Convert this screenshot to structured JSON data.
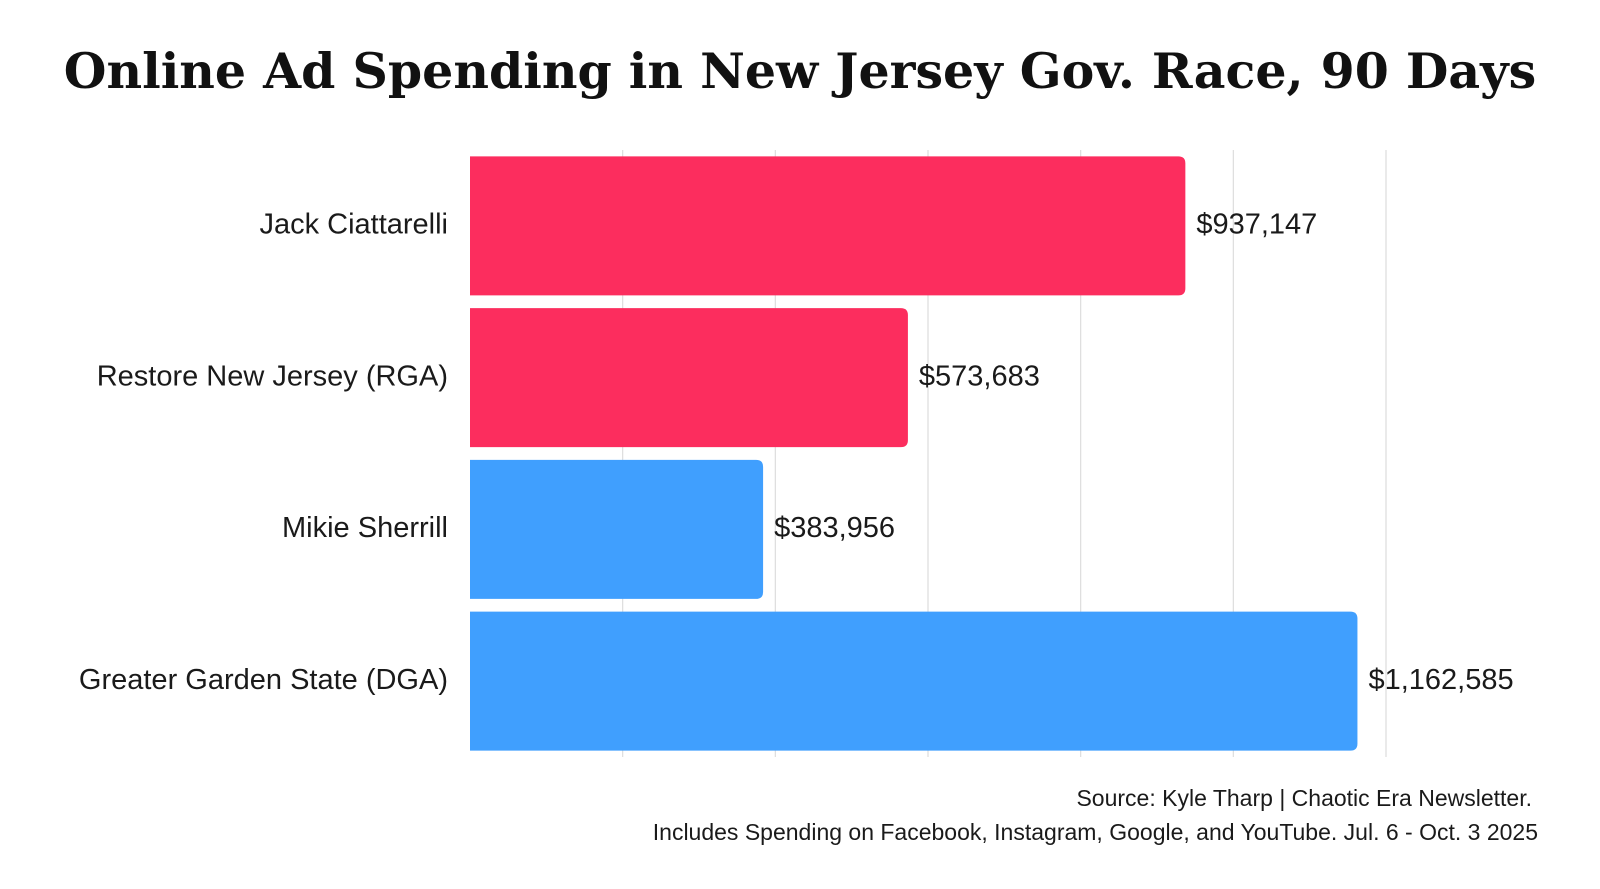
{
  "chart_data": {
    "type": "bar",
    "orientation": "horizontal",
    "title": "Online Ad Spending in New Jersey Gov. Race, 90 Days",
    "categories": [
      "Jack Ciattarelli",
      "Restore New Jersey (RGA)",
      "Mikie Sherrill",
      "Greater Garden State (DGA)"
    ],
    "values": [
      937147,
      573683,
      383956,
      1162585
    ],
    "value_labels": [
      "$937,147",
      "$573,683",
      "$383,956",
      "$1,162,585"
    ],
    "bar_colors": [
      "#fc2d5e",
      "#fc2d5e",
      "#409ffe",
      "#409ffe"
    ],
    "xlim": [
      0,
      1200000
    ],
    "gridline_step": 200000,
    "grid": true,
    "xlabel": "",
    "ylabel": "",
    "legend": "none"
  },
  "footer": {
    "source": "Source: Kyle Tharp | Chaotic Era Newsletter.",
    "note": "Includes Spending on Facebook, Instagram, Google, and YouTube. Jul. 6 - Oct. 3 2025"
  }
}
